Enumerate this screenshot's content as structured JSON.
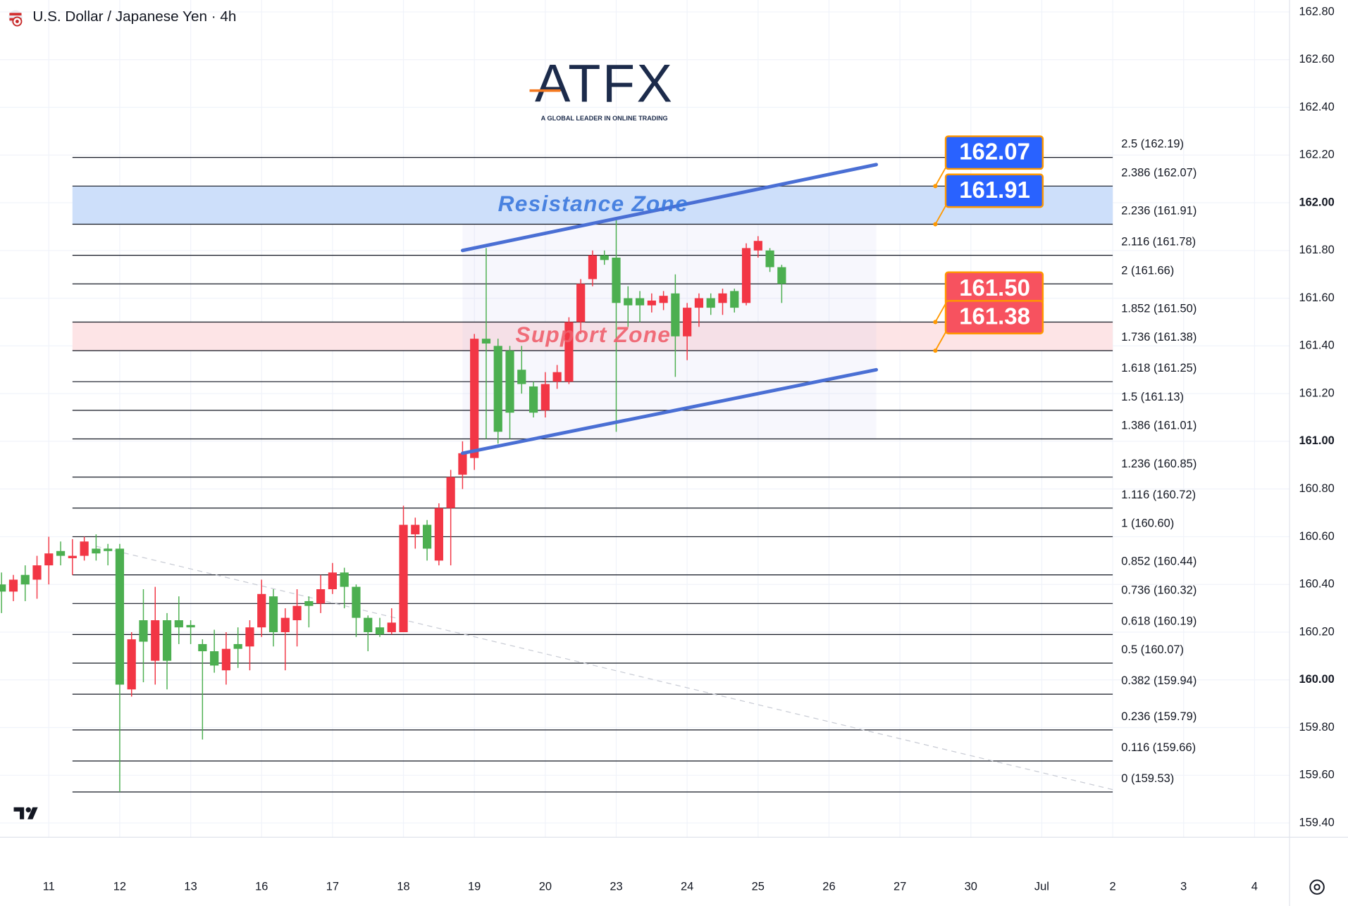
{
  "chart_data": {
    "type": "candlestick",
    "title": "U.S. Dollar / Japanese Yen · 4h",
    "logo": {
      "name": "ATFX",
      "tagline": "A GLOBAL LEADER IN ONLINE TRADING"
    },
    "up_color": "#f23645",
    "down_color": "#4caf50",
    "grid": true,
    "xlim": [
      -0.13,
      108.96
    ],
    "ylim": [
      159.34,
      162.85
    ],
    "xticks": [
      {
        "value": 4,
        "label": "11"
      },
      {
        "value": 10,
        "label": "12"
      },
      {
        "value": 16,
        "label": "13"
      },
      {
        "value": 22,
        "label": "16"
      },
      {
        "value": 28,
        "label": "17"
      },
      {
        "value": 34,
        "label": "18"
      },
      {
        "value": 40,
        "label": "19"
      },
      {
        "value": 46,
        "label": "20"
      },
      {
        "value": 52,
        "label": "23"
      },
      {
        "value": 58,
        "label": "24"
      },
      {
        "value": 64,
        "label": "25"
      },
      {
        "value": 70,
        "label": "26"
      },
      {
        "value": 76,
        "label": "27"
      },
      {
        "value": 82,
        "label": "30"
      },
      {
        "value": 88,
        "label": "Jul"
      },
      {
        "value": 94,
        "label": "2"
      },
      {
        "value": 100,
        "label": "3"
      },
      {
        "value": 106,
        "label": "4"
      }
    ],
    "yticks": [
      {
        "value": 162.8,
        "label": "162.80"
      },
      {
        "value": 162.6,
        "label": "162.60"
      },
      {
        "value": 162.4,
        "label": "162.40"
      },
      {
        "value": 162.2,
        "label": "162.20"
      },
      {
        "value": 162,
        "label": "162.00"
      },
      {
        "value": 161.8,
        "label": "161.80"
      },
      {
        "value": 161.6,
        "label": "161.60"
      },
      {
        "value": 161.4,
        "label": "161.40"
      },
      {
        "value": 161.2,
        "label": "161.20"
      },
      {
        "value": 161,
        "label": "161.00"
      },
      {
        "value": 160.8,
        "label": "160.80"
      },
      {
        "value": 160.6,
        "label": "160.60"
      },
      {
        "value": 160.4,
        "label": "160.40"
      },
      {
        "value": 160.2,
        "label": "160.20"
      },
      {
        "value": 160,
        "label": "160.00"
      },
      {
        "value": 159.8,
        "label": "159.80"
      },
      {
        "value": 159.6,
        "label": "159.60"
      },
      {
        "value": 159.4,
        "label": "159.40"
      }
    ],
    "open": [
      160.4,
      160.37,
      160.44,
      160.42,
      160.48,
      160.54,
      160.51,
      160.52,
      160.55,
      160.55,
      160.55,
      159.96,
      160.25,
      160.08,
      160.25,
      160.25,
      160.23,
      160.15,
      160.12,
      160.04,
      160.15,
      160.14,
      160.22,
      160.35,
      160.2,
      160.25,
      160.33,
      160.32,
      160.38,
      160.45,
      160.39,
      160.26,
      160.22,
      160.2,
      160.2,
      160.61,
      160.65,
      160.5,
      160.72,
      160.86,
      160.93,
      161.43,
      161.4,
      161.38,
      161.3,
      161.23,
      161.13,
      161.25,
      161.25,
      161.5,
      161.68,
      161.78,
      161.77,
      161.6,
      161.6,
      161.57,
      161.58,
      161.62,
      161.44,
      161.56,
      161.6,
      161.58,
      161.63,
      161.58,
      161.8,
      161.8,
      161.73
    ],
    "high": [
      160.45,
      160.44,
      160.48,
      160.52,
      160.6,
      160.58,
      160.59,
      160.6,
      160.61,
      160.57,
      160.57,
      160.2,
      160.38,
      160.39,
      160.28,
      160.35,
      160.25,
      160.17,
      160.21,
      160.2,
      160.22,
      160.25,
      160.42,
      160.38,
      160.3,
      160.38,
      160.35,
      160.44,
      160.49,
      160.47,
      160.4,
      160.27,
      160.26,
      160.3,
      160.73,
      160.68,
      160.67,
      160.74,
      160.88,
      161.0,
      161.45,
      161.81,
      161.43,
      161.4,
      161.4,
      161.25,
      161.29,
      161.32,
      161.52,
      161.68,
      161.8,
      161.8,
      161.93,
      161.65,
      161.63,
      161.62,
      161.63,
      161.7,
      161.58,
      161.62,
      161.62,
      161.64,
      161.64,
      161.83,
      161.86,
      161.81,
      161.74
    ],
    "low": [
      160.28,
      160.33,
      160.33,
      160.34,
      160.4,
      160.48,
      160.44,
      160.5,
      160.5,
      160.48,
      159.53,
      159.93,
      159.99,
      159.98,
      159.96,
      160.15,
      160.15,
      159.75,
      160.03,
      159.98,
      160.05,
      160.04,
      160.18,
      160.14,
      160.04,
      160.14,
      160.22,
      160.28,
      160.36,
      160.3,
      160.18,
      160.12,
      160.18,
      160.19,
      160.2,
      160.55,
      160.5,
      160.48,
      160.48,
      160.8,
      160.88,
      161.01,
      160.99,
      161.01,
      161.2,
      161.1,
      161.1,
      161.22,
      161.24,
      161.45,
      161.65,
      161.74,
      161.04,
      161.48,
      161.5,
      161.54,
      161.55,
      161.27,
      161.34,
      161.48,
      161.53,
      161.53,
      161.54,
      161.57,
      161.77,
      161.71,
      161.58
    ],
    "close": [
      160.37,
      160.42,
      160.4,
      160.48,
      160.53,
      160.52,
      160.52,
      160.58,
      160.53,
      160.54,
      159.98,
      160.17,
      160.16,
      160.25,
      160.08,
      160.22,
      160.22,
      160.12,
      160.06,
      160.13,
      160.13,
      160.22,
      160.36,
      160.2,
      160.26,
      160.31,
      160.31,
      160.38,
      160.45,
      160.39,
      160.26,
      160.2,
      160.19,
      160.24,
      160.65,
      160.65,
      160.55,
      160.72,
      160.85,
      160.95,
      161.43,
      161.41,
      161.04,
      161.12,
      161.24,
      161.12,
      161.24,
      161.29,
      161.5,
      161.66,
      161.78,
      161.76,
      161.58,
      161.57,
      161.57,
      161.59,
      161.61,
      161.44,
      161.56,
      161.6,
      161.56,
      161.62,
      161.56,
      161.81,
      161.84,
      161.73,
      161.66
    ],
    "fib_range": [
      6,
      94
    ],
    "fib_levels": [
      {
        "value": 162.19,
        "label": "2.5 (162.19)"
      },
      {
        "value": 162.07,
        "label": "2.386 (162.07)"
      },
      {
        "value": 161.91,
        "label": "2.236 (161.91)"
      },
      {
        "value": 161.78,
        "label": "2.116 (161.78)"
      },
      {
        "value": 161.66,
        "label": "2 (161.66)"
      },
      {
        "value": 161.5,
        "label": "1.852 (161.50)"
      },
      {
        "value": 161.38,
        "label": "1.736 (161.38)"
      },
      {
        "value": 161.25,
        "label": "1.618 (161.25)"
      },
      {
        "value": 161.13,
        "label": "1.5 (161.13)"
      },
      {
        "value": 161.01,
        "label": "1.386 (161.01)"
      },
      {
        "value": 160.85,
        "label": "1.236 (160.85)"
      },
      {
        "value": 160.72,
        "label": "1.116 (160.72)"
      },
      {
        "value": 160.6,
        "label": "1 (160.60)"
      },
      {
        "value": 160.44,
        "label": "0.852 (160.44)"
      },
      {
        "value": 160.32,
        "label": "0.736 (160.32)"
      },
      {
        "value": 160.19,
        "label": "0.618 (160.19)"
      },
      {
        "value": 160.07,
        "label": "0.5 (160.07)"
      },
      {
        "value": 159.94,
        "label": "0.382 (159.94)"
      },
      {
        "value": 159.79,
        "label": "0.236 (159.79)"
      },
      {
        "value": 159.66,
        "label": "0.116 (159.66)"
      },
      {
        "value": 159.53,
        "label": "0 (159.53)"
      }
    ],
    "zones": [
      {
        "label": "Resistance Zone",
        "range": [
          161.91,
          162.07
        ],
        "fill": "#cddffa",
        "text_color": "#3b78de"
      },
      {
        "label": "Support Zone",
        "range": [
          161.38,
          161.5
        ],
        "fill": "#fde4e6",
        "text_color": "#f0606c"
      }
    ],
    "callouts": [
      {
        "value": 162.07,
        "label": "162.07",
        "color": "#2962ff"
      },
      {
        "value": 161.91,
        "label": "161.91",
        "color": "#2962ff"
      },
      {
        "value": 161.5,
        "label": "161.50",
        "color": "#f7525f"
      },
      {
        "value": 161.38,
        "label": "161.38",
        "color": "#f7525f"
      }
    ],
    "channel": {
      "color": "#4a6fd4",
      "upper": {
        "x": [
          39,
          74
        ],
        "y": [
          161.8,
          162.16
        ]
      },
      "lower": {
        "x": [
          39,
          74
        ],
        "y": [
          160.95,
          161.3
        ]
      }
    },
    "range_box": {
      "x": [
        39,
        74
      ],
      "y": [
        161.01,
        161.91
      ]
    },
    "trend_line": {
      "x": [
        8,
        94
      ],
      "y": [
        160.56,
        159.54
      ]
    }
  }
}
